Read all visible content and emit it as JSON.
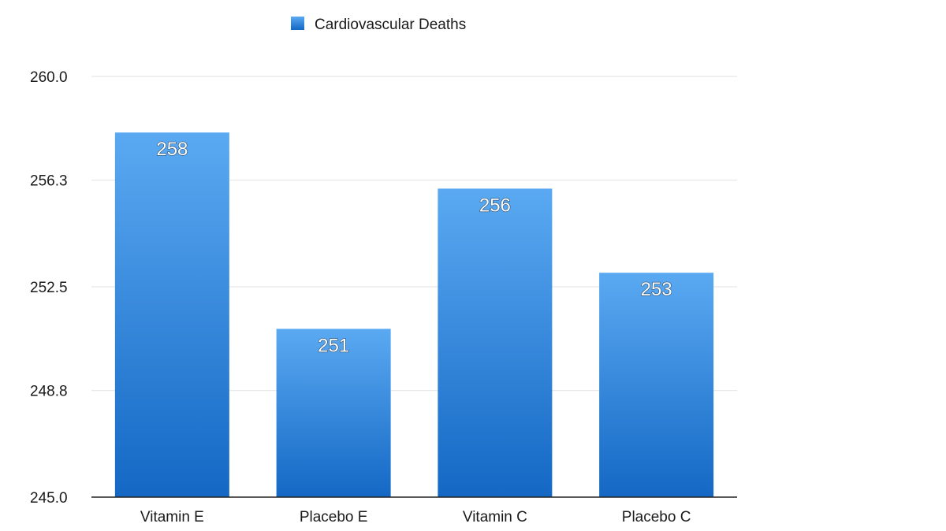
{
  "chart_data": {
    "type": "bar",
    "title": "",
    "xlabel": "",
    "ylabel": "",
    "categories": [
      "Vitamin E",
      "Placebo E",
      "Vitamin C",
      "Placebo C"
    ],
    "series": [
      {
        "name": "Cardiovascular Deaths",
        "values": [
          258,
          251,
          256,
          253
        ],
        "labels": [
          "258",
          "251",
          "256",
          "253"
        ]
      }
    ],
    "ylim": [
      245.0,
      260.0
    ],
    "yticks": [
      245.0,
      248.8,
      252.5,
      256.3,
      260.0
    ],
    "ytick_labels": [
      "245.0",
      "248.8",
      "252.5",
      "256.3",
      "260.0"
    ],
    "grid": true,
    "legend_position": "top-left",
    "colors": {
      "bar_top": "#5aa9f2",
      "bar_bottom": "#1468c4",
      "legend_swatch": "#2a86dc"
    }
  }
}
